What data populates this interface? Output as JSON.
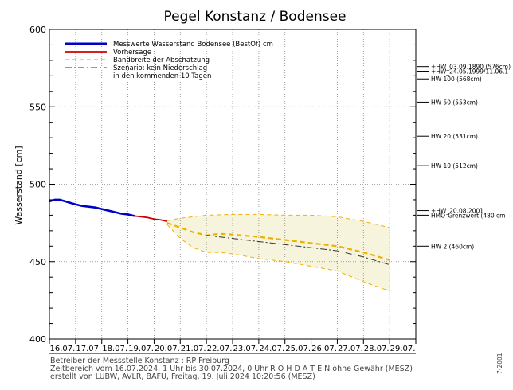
{
  "chart_data": {
    "type": "line",
    "title": "Pegel Konstanz / Bodensee",
    "ylabel": "Wasserstand [cm]",
    "xlabel": "",
    "ylim": [
      400,
      600
    ],
    "yticks": [
      400,
      450,
      500,
      550,
      600
    ],
    "xlim_days": [
      16,
      30
    ],
    "x_tick_labels": [
      "16.07.",
      "17.07.",
      "18.07.",
      "19.07.",
      "20.07.",
      "21.07.",
      "22.07.",
      "23.07.",
      "24.07.",
      "25.07.",
      "26.07.",
      "27.07.",
      "28.07.",
      "29.07."
    ],
    "grid": true,
    "legend_position": "top-left",
    "legend": [
      {
        "label": "Messwerte Wasserstand Bodensee  (BestOf)  cm",
        "color": "#0000c8",
        "style": "solid-thick"
      },
      {
        "label": "Vorhersage",
        "color": "#d00000",
        "style": "solid"
      },
      {
        "label": "Bandbreite der Abschätzung",
        "color": "#f0b000",
        "style": "dashed"
      },
      {
        "label": "Szenario: kein Niederschlag",
        "color": "#333333",
        "style": "dashdot"
      },
      {
        "label": "in den kommenden 10 Tagen",
        "color": "",
        "style": "none"
      }
    ],
    "series": [
      {
        "name": "Messwerte Wasserstand Bodensee  (BestOf)  cm",
        "color": "#0000c8",
        "x": [
          16.0,
          16.2,
          16.4,
          16.6,
          16.8,
          17.0,
          17.25,
          17.5,
          17.75,
          18.0,
          18.25,
          18.5,
          18.75,
          19.0,
          19.25
        ],
        "y": [
          489,
          490,
          490,
          489,
          488,
          487,
          486,
          485.5,
          485,
          484,
          483,
          482,
          481,
          480.5,
          479.5
        ]
      },
      {
        "name": "Vorhersage",
        "color": "#d00000",
        "x": [
          19.25,
          19.5,
          19.75,
          20.0,
          20.25,
          20.5
        ],
        "y": [
          479.5,
          479,
          478.5,
          477.5,
          477,
          476
        ]
      },
      {
        "name": "Bandbreite der Abschätzung",
        "color": "#f0b000",
        "role": "center",
        "x": [
          20.5,
          21.0,
          21.5,
          22.0,
          22.5,
          23.0,
          24.0,
          25.0,
          26.0,
          27.0,
          28.0,
          29.0
        ],
        "y": [
          475,
          472,
          469,
          467,
          468,
          467.5,
          466,
          464,
          462,
          460,
          456,
          451
        ]
      },
      {
        "name": "Bandbreite der Abschätzung",
        "color": "#f0b000",
        "role": "upper",
        "x": [
          20.5,
          21.0,
          22.0,
          23.0,
          24.0,
          25.0,
          26.0,
          27.0,
          28.0,
          29.0
        ],
        "y": [
          476.5,
          478,
          480,
          480.5,
          480.5,
          480,
          480,
          479,
          476,
          472
        ]
      },
      {
        "name": "Bandbreite der Abschätzung",
        "color": "#f0b000",
        "role": "lower",
        "x": [
          20.5,
          21.0,
          21.5,
          22.0,
          22.5,
          23.0,
          24.0,
          25.0,
          26.0,
          27.0,
          28.0,
          29.0
        ],
        "y": [
          474,
          465,
          459,
          456,
          456,
          455,
          452,
          450,
          447,
          444,
          437,
          431
        ]
      },
      {
        "name": "Szenario: kein Niederschlag",
        "color": "#333333",
        "x": [
          22.0,
          23.0,
          24.0,
          25.0,
          26.0,
          27.0,
          28.0,
          29.0
        ],
        "y": [
          467,
          465,
          463,
          461,
          459,
          457,
          453,
          448
        ]
      }
    ],
    "reference_lines": [
      {
        "label": "+HW_03.09.1890 (576cm)",
        "y": 576
      },
      {
        "label": "HW 100 (568cm)",
        "y": 568
      },
      {
        "label": "+HW_24.05.1999/11.06.1",
        "y": 573
      },
      {
        "label": "HW 50 (553cm)",
        "y": 553
      },
      {
        "label": "HW 20 (531cm)",
        "y": 531
      },
      {
        "label": "HW 10 (512cm)",
        "y": 512
      },
      {
        "label": "+HW_20.08.2001",
        "y": 483
      },
      {
        "label": "HMO-Grenzwert (480 cm",
        "y": 480
      },
      {
        "label": "HW 2 (460cm)",
        "y": 460
      }
    ],
    "footer": [
      "Betreiber der Messstelle Konstanz : RP Freiburg",
      "Zeitbereich vom 16.07.2024, 1 Uhr bis 30.07.2024, 0 Uhr   R O H D A T E N ohne Gewähr (MESZ)",
      "erstellt von LUBW, AVLR, BAFU, Freitag, 19. Juli 2024 10:20:56 (MESZ)"
    ],
    "side_note": "7-2001"
  }
}
